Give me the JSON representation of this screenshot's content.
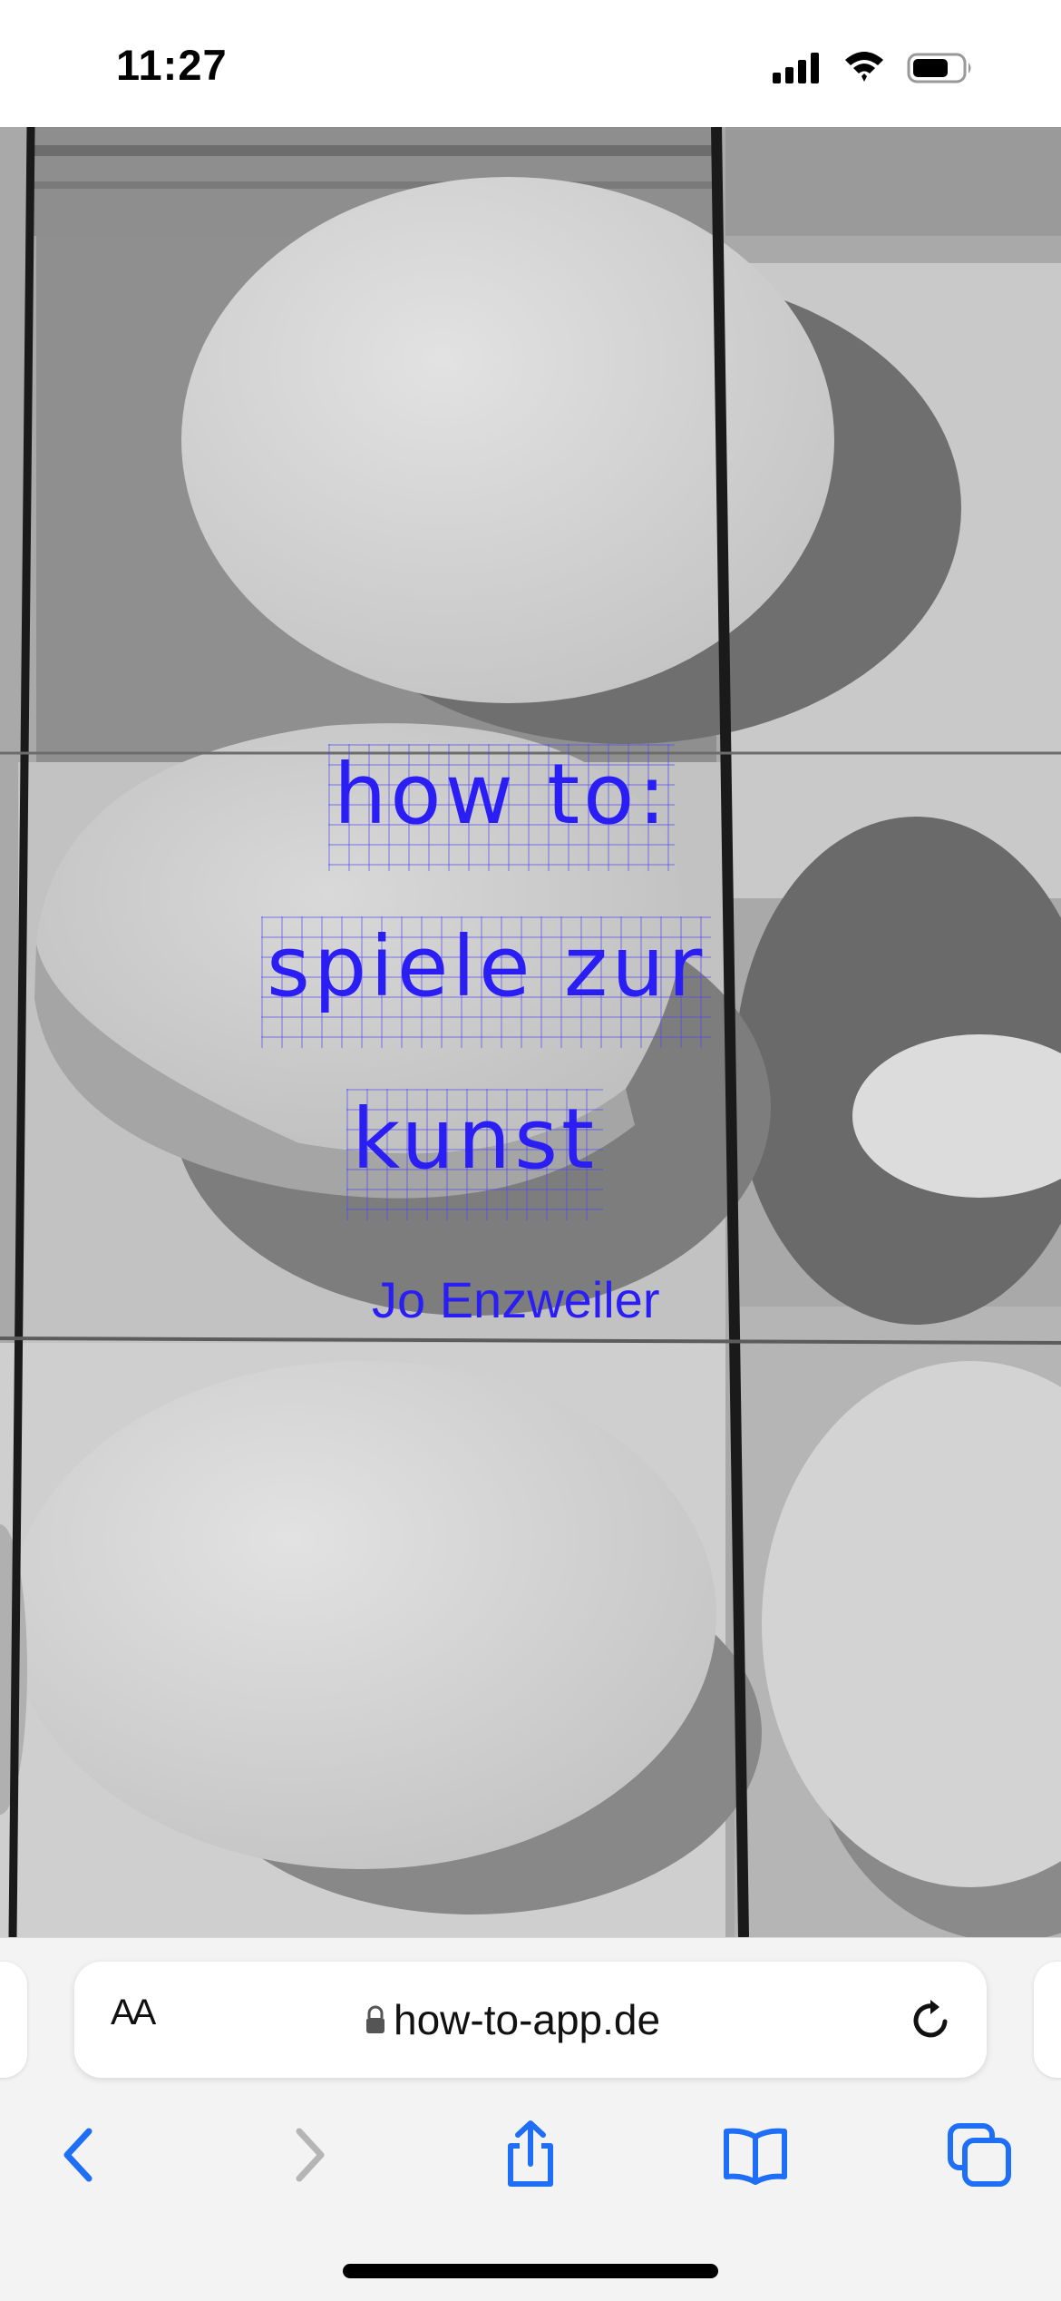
{
  "status_bar": {
    "time": "11:27",
    "icons": [
      "cellular-signal-icon",
      "wifi-icon",
      "battery-icon"
    ]
  },
  "hero": {
    "title_lines": [
      "how to:",
      "spiele zur",
      "kunst"
    ],
    "author": "Jo Enzweiler",
    "text_color": "#2a1ef5"
  },
  "browser": {
    "text_size_label": "AA",
    "url": "how-to-app.de",
    "accent_color": "#1e6ff5",
    "nav_icons": [
      "back-icon",
      "forward-icon",
      "share-icon",
      "bookmarks-icon",
      "tabs-icon"
    ]
  }
}
